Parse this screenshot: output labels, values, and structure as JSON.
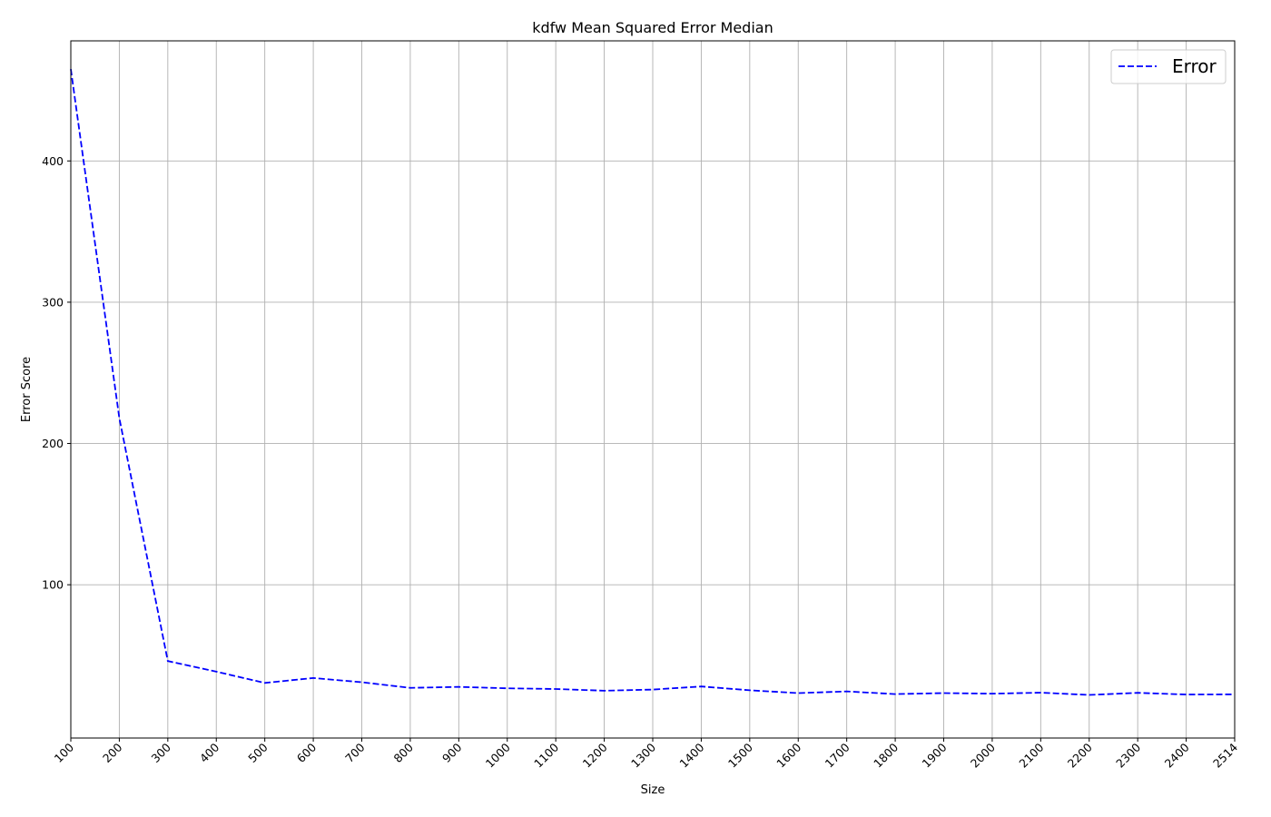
{
  "chart_data": {
    "type": "line",
    "title": "kdfw Mean Squared Error Median",
    "xlabel": "Size",
    "ylabel": "Error Score",
    "x": [
      100,
      200,
      300,
      400,
      500,
      600,
      700,
      800,
      900,
      1000,
      1100,
      1200,
      1300,
      1400,
      1500,
      1600,
      1700,
      1800,
      1900,
      2000,
      2100,
      2200,
      2300,
      2400,
      2514
    ],
    "x_tick_labels": [
      "100",
      "200",
      "300",
      "400",
      "500",
      "600",
      "700",
      "800",
      "900",
      "1000",
      "1100",
      "1200",
      "1300",
      "1400",
      "1500",
      "1600",
      "1700",
      "1800",
      "1900",
      "2000",
      "2100",
      "2200",
      "2300",
      "2400",
      "2514"
    ],
    "x_scale": "categorical-evenly-spaced",
    "series": [
      {
        "name": "Error",
        "color": "#0000ff",
        "linestyle": "dashed",
        "values": [
          465,
          218,
          46,
          38.5,
          30.5,
          34,
          31,
          27,
          27.7,
          26.7,
          26.2,
          25,
          25.8,
          28,
          25.3,
          23.3,
          24.5,
          22.6,
          23.3,
          22.9,
          23.6,
          22,
          23.5,
          22.3,
          22.4
        ]
      }
    ],
    "ylim": [
      -8.5,
      485
    ],
    "y_ticks": [
      100,
      200,
      300,
      400
    ],
    "y_tick_labels": [
      "100",
      "200",
      "300",
      "400"
    ],
    "grid": true,
    "grid_color": "#b0b0b0",
    "legend_position": "top-right"
  }
}
